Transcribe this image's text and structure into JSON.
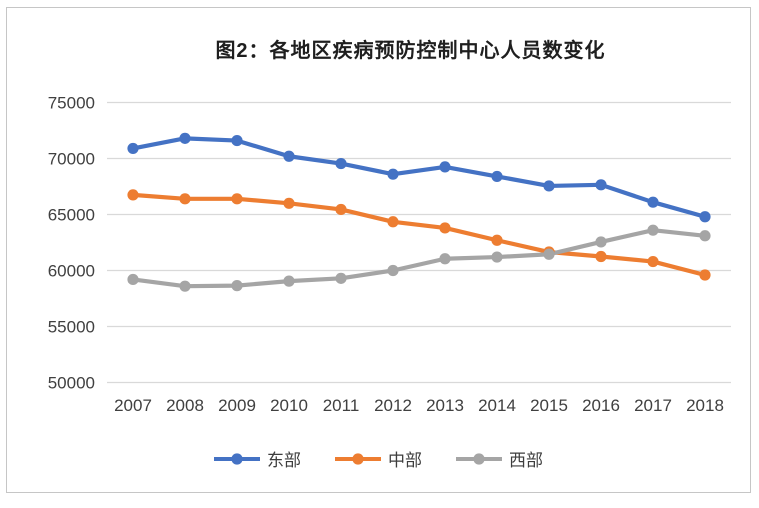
{
  "chart": {
    "title": "图2：各地区疾病预防控制中心人员数变化"
  },
  "chart_data": {
    "type": "line",
    "title": "图2：各地区疾病预防控制中心人员数变化",
    "x": [
      2007,
      2008,
      2009,
      2010,
      2011,
      2012,
      2013,
      2014,
      2015,
      2016,
      2017,
      2018
    ],
    "series": [
      {
        "name": "东部",
        "color": "#4472C4",
        "values": [
          70900,
          71800,
          71600,
          70200,
          69550,
          68600,
          69250,
          68400,
          67550,
          67650,
          66100,
          64800
        ]
      },
      {
        "name": "中部",
        "color": "#ED7D31",
        "values": [
          66750,
          66400,
          66400,
          66000,
          65450,
          64350,
          63800,
          62700,
          61650,
          61250,
          60800,
          59600
        ]
      },
      {
        "name": "西部",
        "color": "#A5A5A5",
        "values": [
          59200,
          58600,
          58650,
          59050,
          59300,
          60000,
          61050,
          61200,
          61450,
          62550,
          63600,
          63100
        ]
      }
    ],
    "ylim": [
      50000,
      75000
    ],
    "yticks": [
      75000,
      70000,
      65000,
      60000,
      55000,
      50000
    ],
    "grid": "horizontal",
    "legend_position": "bottom",
    "marker": "circle",
    "colors": {
      "gridline": "#d9d9d9",
      "axis_text": "#404040",
      "title_text": "#1f1f1f",
      "card_border": "#c6c6c6"
    }
  }
}
